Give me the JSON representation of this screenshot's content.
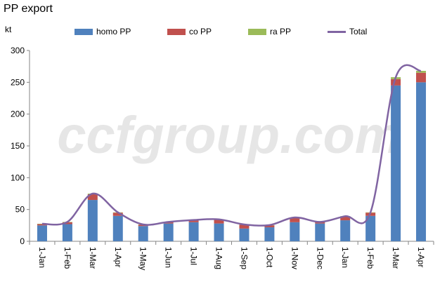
{
  "title": "PP export",
  "unit": "kt",
  "watermark": "ccfgroup.com",
  "chart_data": {
    "type": "bar",
    "stacked": true,
    "categories": [
      "1-Jan",
      "1-Feb",
      "1-Mar",
      "1-Apr",
      "1-May",
      "1-Jun",
      "1-Jul",
      "1-Aug",
      "1-Sep",
      "1-Oct",
      "1-Nov",
      "1-Dec",
      "1-Jan",
      "1-Feb",
      "1-Mar",
      "1-Apr"
    ],
    "series": [
      {
        "name": "homo PP",
        "type": "bar",
        "color": "#4f81bd",
        "values": [
          25,
          27,
          65,
          40,
          24,
          28,
          30,
          28,
          20,
          22,
          30,
          28,
          33,
          40,
          245,
          250
        ]
      },
      {
        "name": "co PP",
        "type": "bar",
        "color": "#c0504d",
        "values": [
          2,
          3,
          9,
          5,
          2,
          2,
          3,
          6,
          6,
          3,
          7,
          2,
          6,
          5,
          10,
          15
        ]
      },
      {
        "name": "ra PP",
        "type": "bar",
        "color": "#9bbb59",
        "values": [
          0.5,
          0.5,
          1,
          0.5,
          0.5,
          0.5,
          0.5,
          0.5,
          0.5,
          0.5,
          0.5,
          0.5,
          0.5,
          0.5,
          3,
          3
        ]
      },
      {
        "name": "Total",
        "type": "line",
        "color": "#8064a2",
        "values": [
          27.5,
          30.5,
          75,
          45.5,
          26.5,
          30.5,
          33.5,
          34.5,
          26.5,
          25.5,
          37.5,
          30.5,
          39.5,
          45.5,
          258,
          268
        ]
      }
    ],
    "ylim": [
      0,
      300
    ],
    "yticks": [
      0,
      50,
      100,
      150,
      200,
      250,
      300
    ],
    "ylabel": "kt",
    "legend_position": "top",
    "grid": false
  }
}
